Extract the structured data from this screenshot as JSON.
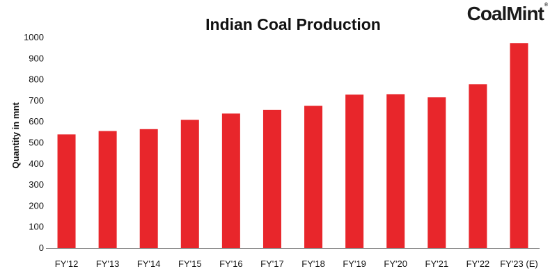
{
  "brand": {
    "logo_text": "CoalMint",
    "accent_color": "#e8262b"
  },
  "chart_data": {
    "type": "bar",
    "title": "Indian Coal Production",
    "xlabel": "",
    "ylabel": "Quantity in mnt",
    "categories": [
      "FY'12",
      "FY'13",
      "FY'14",
      "FY'15",
      "FY'16",
      "FY'17",
      "FY'18",
      "FY'19",
      "FY'20",
      "FY'21",
      "FY'22",
      "FY'23 (E)"
    ],
    "values": [
      540,
      556,
      565,
      609,
      639,
      657,
      676,
      729,
      731,
      716,
      778,
      973
    ],
    "ylim": [
      0,
      1000
    ],
    "yticks": [
      0,
      100,
      200,
      300,
      400,
      500,
      600,
      700,
      800,
      900,
      1000
    ],
    "bar_color": "#e8262b",
    "grid": false,
    "legend": "none"
  }
}
